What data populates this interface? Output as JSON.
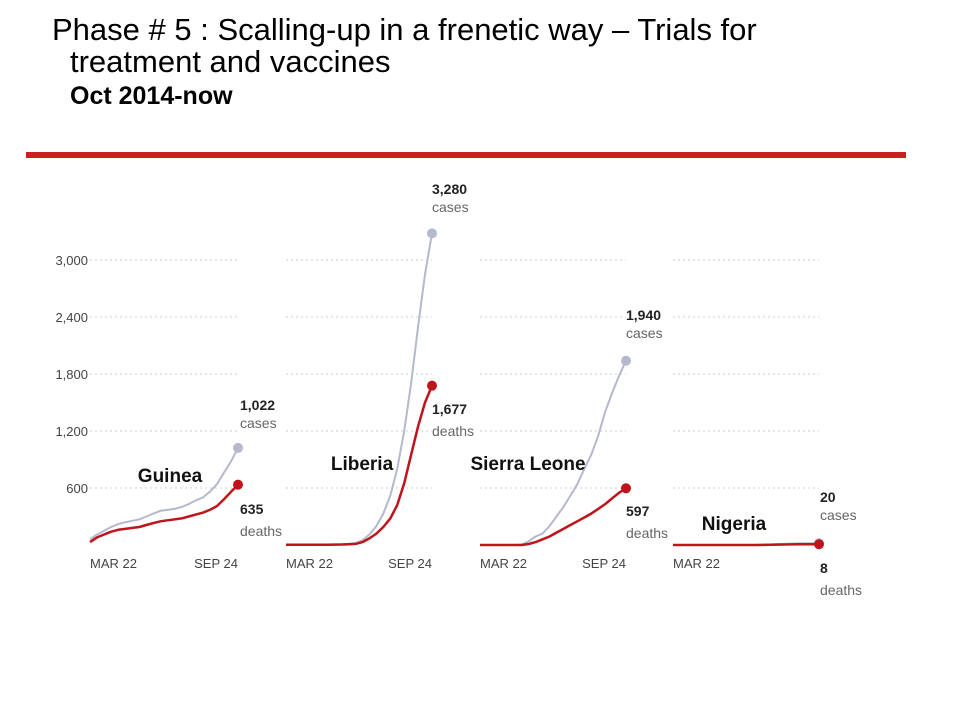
{
  "slide": {
    "title_line1": "Phase # 5 :  Scalling-up in a frenetic way – Trials for",
    "title_line2": "treatment and vaccines",
    "subtitle": "Oct 2014-now"
  },
  "colors": {
    "rule": "#cc1f1f",
    "cases": "#b4b9ce",
    "deaths": "#c0141c",
    "grid": "#cccccc"
  },
  "chart_data": {
    "type": "line",
    "y_ticks": [
      600,
      1200,
      1800,
      2400,
      3000
    ],
    "y_tick_labels": [
      "600",
      "1,200",
      "1,800",
      "2,400",
      "3,000"
    ],
    "ylim": [
      0,
      3300
    ],
    "x_start_label": "MAR 22",
    "x_end_label": "SEP 24",
    "grid": true,
    "panels": [
      {
        "name": "Guinea",
        "series": [
          {
            "name": "cases",
            "final_label": "1,022",
            "final_unit": "cases",
            "values": [
              60,
              110,
              150,
              190,
              220,
              240,
              255,
              270,
              300,
              330,
              360,
              370,
              380,
              400,
              430,
              470,
              500,
              560,
              640,
              760,
              880,
              1022
            ]
          },
          {
            "name": "deaths",
            "final_label": "635",
            "final_unit": "deaths",
            "values": [
              30,
              80,
              110,
              140,
              160,
              170,
              180,
              190,
              210,
              230,
              250,
              260,
              270,
              280,
              300,
              320,
              340,
              370,
              410,
              480,
              560,
              635
            ]
          }
        ]
      },
      {
        "name": "Liberia",
        "series": [
          {
            "name": "cases",
            "final_label": "3,280",
            "final_unit": "cases",
            "values": [
              5,
              5,
              5,
              5,
              5,
              5,
              5,
              6,
              8,
              12,
              20,
              50,
              110,
              200,
              330,
              520,
              800,
              1200,
              1700,
              2300,
              2850,
              3280
            ]
          },
          {
            "name": "deaths",
            "final_label": "1,677",
            "final_unit": "deaths",
            "values": [
              3,
              3,
              3,
              3,
              3,
              3,
              3,
              4,
              5,
              8,
              12,
              30,
              70,
              120,
              190,
              280,
              420,
              650,
              950,
              1250,
              1500,
              1677
            ]
          }
        ]
      },
      {
        "name": "Sierra Leone",
        "series": [
          {
            "name": "cases",
            "final_label": "1,940",
            "final_unit": "cases",
            "values": [
              0,
              0,
              0,
              0,
              0,
              0,
              5,
              40,
              90,
              120,
              200,
              300,
              400,
              520,
              640,
              800,
              950,
              1150,
              1400,
              1600,
              1780,
              1940
            ]
          },
          {
            "name": "deaths",
            "final_label": "597",
            "final_unit": "deaths",
            "values": [
              0,
              0,
              0,
              0,
              0,
              0,
              0,
              10,
              30,
              60,
              90,
              130,
              170,
              210,
              250,
              290,
              330,
              380,
              430,
              490,
              550,
              597
            ]
          }
        ]
      },
      {
        "name": "Nigeria",
        "series": [
          {
            "name": "cases",
            "final_label": "20",
            "final_unit": "cases",
            "values": [
              0,
              0,
              0,
              0,
              0,
              0,
              0,
              0,
              0,
              0,
              0,
              0,
              0,
              2,
              5,
              9,
              12,
              15,
              17,
              18,
              19,
              20
            ]
          },
          {
            "name": "deaths",
            "final_label": "8",
            "final_unit": "deaths",
            "values": [
              0,
              0,
              0,
              0,
              0,
              0,
              0,
              0,
              0,
              0,
              0,
              0,
              0,
              1,
              2,
              4,
              5,
              6,
              7,
              7,
              8,
              8
            ]
          }
        ]
      }
    ]
  }
}
